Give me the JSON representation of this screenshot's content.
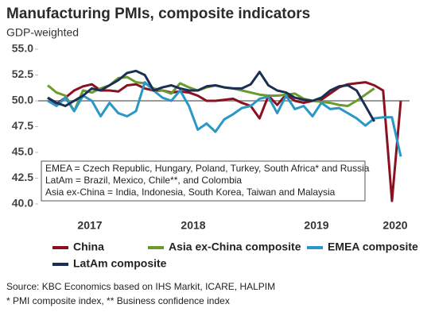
{
  "chart_data": {
    "type": "line",
    "title": "Manufacturing PMIs, composite indicators",
    "subtitle": "GDP-weighted",
    "categories": [
      null,
      null,
      null,
      null,
      null,
      null,
      null,
      null,
      null,
      null,
      null,
      null,
      null,
      null,
      null,
      null,
      null,
      null,
      null,
      null,
      null,
      null,
      null,
      null,
      null,
      null,
      null,
      null,
      null,
      null,
      null,
      null,
      null,
      null,
      null,
      null,
      null,
      null,
      null,
      null,
      null
    ],
    "year_labels": [
      "2017",
      "2018",
      "2019",
      "2020"
    ],
    "ylim": [
      40,
      55
    ],
    "yticks": [
      {
        "value": 40,
        "label": "40.0"
      },
      42.5,
      {
        "value": 45,
        "label": "45.0"
      },
      47.5,
      {
        "value": 50,
        "label": "50.0"
      },
      52.5,
      {
        "value": 55,
        "label": "55.0"
      }
    ],
    "reference_line": 50,
    "grid": false,
    "series": [
      {
        "name": "China",
        "color": "#8b1020",
        "values": [
          50.3,
          49.7,
          50.3,
          51,
          51.4,
          51.6,
          51,
          51,
          50.9,
          51.5,
          51.6,
          51.2,
          51,
          51,
          50.8,
          50.9,
          50.8,
          50.5,
          50,
          50,
          50.1,
          50.2,
          49.8,
          49.5,
          48.3,
          50.5,
          49.6,
          50.6,
          50,
          49.8,
          50,
          50.1,
          50.7,
          51.3,
          51.6,
          51.7,
          51.8,
          51.5,
          51,
          40.3,
          50
        ]
      },
      {
        "name": "Asia ex-China composite",
        "color": "#6b9a2e",
        "values": [
          51.5,
          50.8,
          50.5,
          49,
          51,
          50.8,
          51.2,
          51.5,
          52.2,
          52.3,
          51.8,
          51.7,
          51.2,
          51,
          50.7,
          51.7,
          51.3,
          51,
          51.3,
          51.5,
          51.3,
          51.2,
          51,
          50.8,
          50.6,
          50.5,
          50.5,
          50.6,
          50.7,
          50.2,
          50,
          49.9,
          49.8,
          49.6,
          49.5,
          50,
          50.6,
          51.2,
          null,
          null,
          null
        ]
      },
      {
        "name": "EMEA composite",
        "color": "#2a97c6",
        "values": [
          50,
          49.5,
          50.3,
          49,
          50.5,
          50,
          48.5,
          49.8,
          48.8,
          48.5,
          49,
          51.8,
          51,
          50.3,
          50,
          51,
          49.5,
          47.2,
          47.8,
          47,
          48.2,
          48.7,
          49.3,
          49.5,
          50.2,
          50.4,
          48.8,
          50.5,
          49.2,
          49.5,
          48.5,
          49.8,
          49.2,
          49.3,
          48.8,
          48.3,
          47.6,
          48.3,
          48.4,
          48.4,
          44.6
        ]
      },
      {
        "name": "LatAm composite",
        "color": "#1b2f55",
        "values": [
          50.3,
          49.8,
          49.5,
          50,
          50.5,
          51.2,
          51,
          51.5,
          52,
          52.7,
          52.9,
          52.5,
          51,
          51.3,
          51.5,
          51.2,
          51,
          51,
          51.4,
          51.5,
          51.3,
          51.2,
          51.2,
          51.6,
          52.8,
          51.5,
          51,
          50.8,
          50.3,
          50.1,
          50,
          50.3,
          51,
          51.4,
          51.5,
          51,
          49.5,
          48,
          null,
          null,
          null
        ]
      }
    ],
    "annotations": [
      "EMEA = Czech Republic, Hungary, Poland, Turkey, South Africa* and Russia",
      "LatAm = Brazil, Mexico, Chile**, and Colombia",
      "Asia ex-China = India, Indonesia, South Korea, Taiwan and Malaysia"
    ],
    "source": [
      "Source: KBC Economics based on IHS Markit, ICARE, HALPIM",
      "* PMI composite index, ** Business confidence index"
    ]
  }
}
